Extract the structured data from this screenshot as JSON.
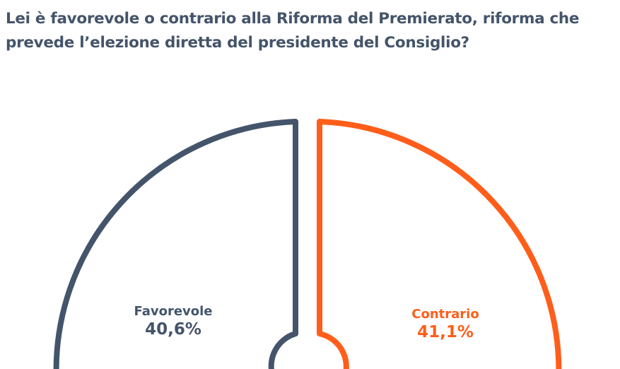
{
  "chart_data": {
    "type": "pie",
    "title": "Lei è favorevole o contrario alla Riforma del Premierato, riforma che prevede l’elezione diretta del presidente del Consiglio?",
    "slices": [
      {
        "label": "Favorevole",
        "value": 40.6,
        "value_label": "40,6%",
        "color": "#44546A"
      },
      {
        "label": "Contrario",
        "value": 41.1,
        "value_label": "41,1%",
        "color": "#FF5E1A"
      }
    ],
    "style": "outline-only, exploded slices"
  }
}
